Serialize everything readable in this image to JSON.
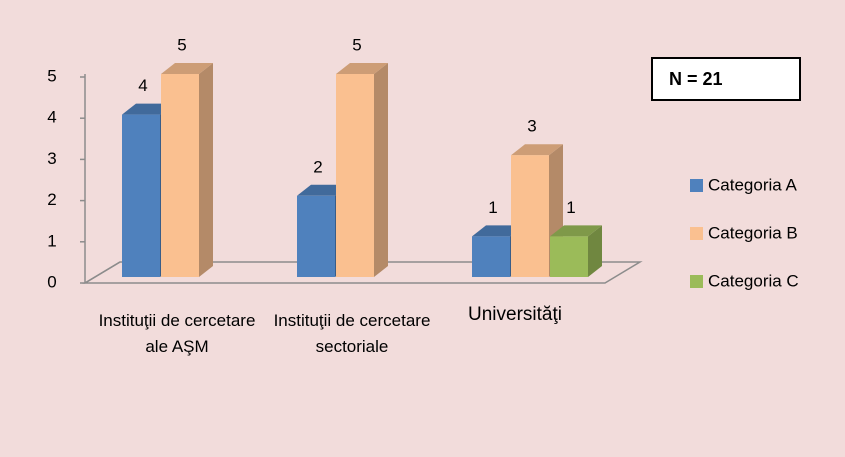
{
  "chart_data": {
    "type": "bar3d",
    "categories": [
      "Instituţii de cercetare ale AŞM",
      "Instituţii de cercetare sectoriale",
      "Universităţi"
    ],
    "series": [
      {
        "name": "Categoria A",
        "color": "#4f81bd",
        "values": [
          4,
          2,
          1
        ]
      },
      {
        "name": "Categoria B",
        "color": "#fac090",
        "values": [
          5,
          5,
          3
        ]
      },
      {
        "name": "Categoria C",
        "color": "#9bbb59",
        "values": [
          null,
          null,
          1
        ]
      }
    ],
    "ylim": [
      0,
      5
    ],
    "yticks": [
      0,
      1,
      2,
      3,
      4,
      5
    ],
    "annotation": "N = 21",
    "legend": "right",
    "grid": false
  }
}
